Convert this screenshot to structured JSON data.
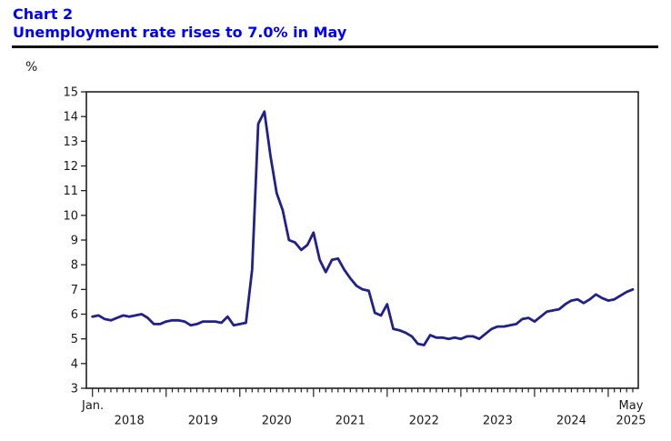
{
  "header": {
    "chart_label": "Chart 2",
    "title": "Unemployment rate rises to 7.0% in May",
    "title_color": "#0000ff"
  },
  "axes": {
    "y_unit_label": "%",
    "x_first_tick_label": "Jan.",
    "x_last_month_label": "May"
  },
  "chart_data": {
    "type": "line",
    "title": "Unemployment rate rises to 7.0% in May",
    "ylabel": "%",
    "ylim": [
      3,
      15
    ],
    "y_ticks": [
      3,
      4,
      5,
      6,
      7,
      8,
      9,
      10,
      11,
      12,
      13,
      14,
      15
    ],
    "x_start": "Jan 2018",
    "x_end": "May 2025",
    "x_tick_interval": "monthly, long tick each January",
    "year_labels": [
      "2018",
      "2019",
      "2020",
      "2021",
      "2022",
      "2023",
      "2024",
      "2025"
    ],
    "grid": false,
    "legend": "none",
    "line_color": "#21218c",
    "axis_color": "#231f20",
    "series": [
      {
        "name": "Unemployment rate (%)",
        "monthly_values": [
          5.9,
          5.95,
          5.8,
          5.75,
          5.85,
          5.95,
          5.9,
          5.95,
          6.0,
          5.85,
          5.6,
          5.6,
          5.7,
          5.75,
          5.75,
          5.7,
          5.55,
          5.6,
          5.7,
          5.7,
          5.7,
          5.65,
          5.9,
          5.55,
          5.6,
          5.65,
          7.8,
          13.7,
          14.2,
          12.4,
          10.9,
          10.2,
          9.0,
          8.9,
          8.6,
          8.8,
          9.3,
          8.2,
          7.7,
          8.2,
          8.25,
          7.8,
          7.45,
          7.15,
          7.0,
          6.95,
          6.05,
          5.95,
          6.4,
          5.4,
          5.35,
          5.25,
          5.1,
          4.8,
          4.75,
          5.15,
          5.05,
          5.05,
          5.0,
          5.05,
          5.0,
          5.1,
          5.1,
          5.0,
          5.2,
          5.4,
          5.5,
          5.5,
          5.55,
          5.6,
          5.8,
          5.85,
          5.7,
          5.9,
          6.1,
          6.15,
          6.2,
          6.4,
          6.55,
          6.6,
          6.45,
          6.6,
          6.8,
          6.65,
          6.55,
          6.6,
          6.75,
          6.9,
          7.0
        ]
      }
    ]
  }
}
